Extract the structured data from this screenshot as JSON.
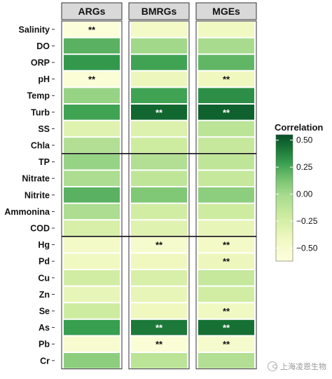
{
  "chart_data": {
    "type": "heatmap",
    "columns": [
      "ARGs",
      "BMRGs",
      "MGEs"
    ],
    "rows": [
      "Salinity",
      "DO",
      "ORP",
      "pH",
      "Temp",
      "Turb",
      "SS",
      "Chla",
      "TP",
      "Nitrate",
      "Nitrite",
      "Ammonina",
      "COD",
      "Hg",
      "Pd",
      "Cu",
      "Zn",
      "Se",
      "As",
      "Pb",
      "Cr"
    ],
    "groups": [
      {
        "start": 0,
        "end": 7
      },
      {
        "start": 8,
        "end": 12
      },
      {
        "start": 13,
        "end": 20
      }
    ],
    "values": [
      [
        -0.58,
        -0.45,
        -0.42
      ],
      [
        0.22,
        0.02,
        0.0
      ],
      [
        0.32,
        0.28,
        0.2
      ],
      [
        -0.55,
        -0.38,
        -0.4
      ],
      [
        0.05,
        0.28,
        0.35
      ],
      [
        0.28,
        0.48,
        0.5
      ],
      [
        -0.3,
        -0.28,
        -0.1
      ],
      [
        -0.05,
        -0.2,
        -0.15
      ],
      [
        0.05,
        -0.05,
        -0.12
      ],
      [
        -0.02,
        -0.12,
        -0.15
      ],
      [
        0.22,
        0.12,
        0.08
      ],
      [
        -0.02,
        -0.22,
        -0.2
      ],
      [
        -0.25,
        -0.3,
        -0.35
      ],
      [
        -0.45,
        -0.48,
        -0.45
      ],
      [
        -0.42,
        -0.4,
        -0.38
      ],
      [
        -0.22,
        -0.25,
        -0.15
      ],
      [
        -0.35,
        -0.35,
        -0.22
      ],
      [
        -0.2,
        -0.4,
        -0.42
      ],
      [
        0.3,
        0.42,
        0.45
      ],
      [
        -0.5,
        -0.55,
        -0.48
      ],
      [
        0.08,
        -0.1,
        -0.05
      ]
    ],
    "significance": [
      [
        "**",
        "",
        ""
      ],
      [
        "",
        "",
        ""
      ],
      [
        "",
        "",
        ""
      ],
      [
        "**",
        "",
        "**"
      ],
      [
        "",
        "",
        ""
      ],
      [
        "",
        "**",
        "**"
      ],
      [
        "",
        "",
        ""
      ],
      [
        "",
        "",
        ""
      ],
      [
        "",
        "",
        ""
      ],
      [
        "",
        "",
        ""
      ],
      [
        "",
        "",
        ""
      ],
      [
        "",
        "",
        ""
      ],
      [
        "",
        "",
        ""
      ],
      [
        "",
        "**",
        "**"
      ],
      [
        "",
        "",
        "**"
      ],
      [
        "",
        "",
        ""
      ],
      [
        "",
        "",
        ""
      ],
      [
        "",
        "",
        "**"
      ],
      [
        "",
        "**",
        "**"
      ],
      [
        "",
        "**",
        "**"
      ],
      [
        "",
        "",
        ""
      ]
    ],
    "legend": {
      "title": "Correlation",
      "ticks": [
        0.5,
        0.25,
        0.0,
        -0.25,
        -0.5
      ],
      "tick_labels": [
        "0.50",
        "0.25",
        "0.00",
        "−0.25",
        "−0.50"
      ],
      "range": [
        -0.62,
        0.55
      ],
      "position": "right"
    },
    "colors": {
      "low": "#ffffe0",
      "mid_low": "#e7f4b0",
      "mid": "#a9dc8f",
      "mid_high": "#4fb05e",
      "high": "#0a5a2c",
      "strip_fill": "#d9d9d9"
    }
  },
  "watermark": {
    "text": "上海凌恩生物",
    "icon": "wechat-icon"
  }
}
